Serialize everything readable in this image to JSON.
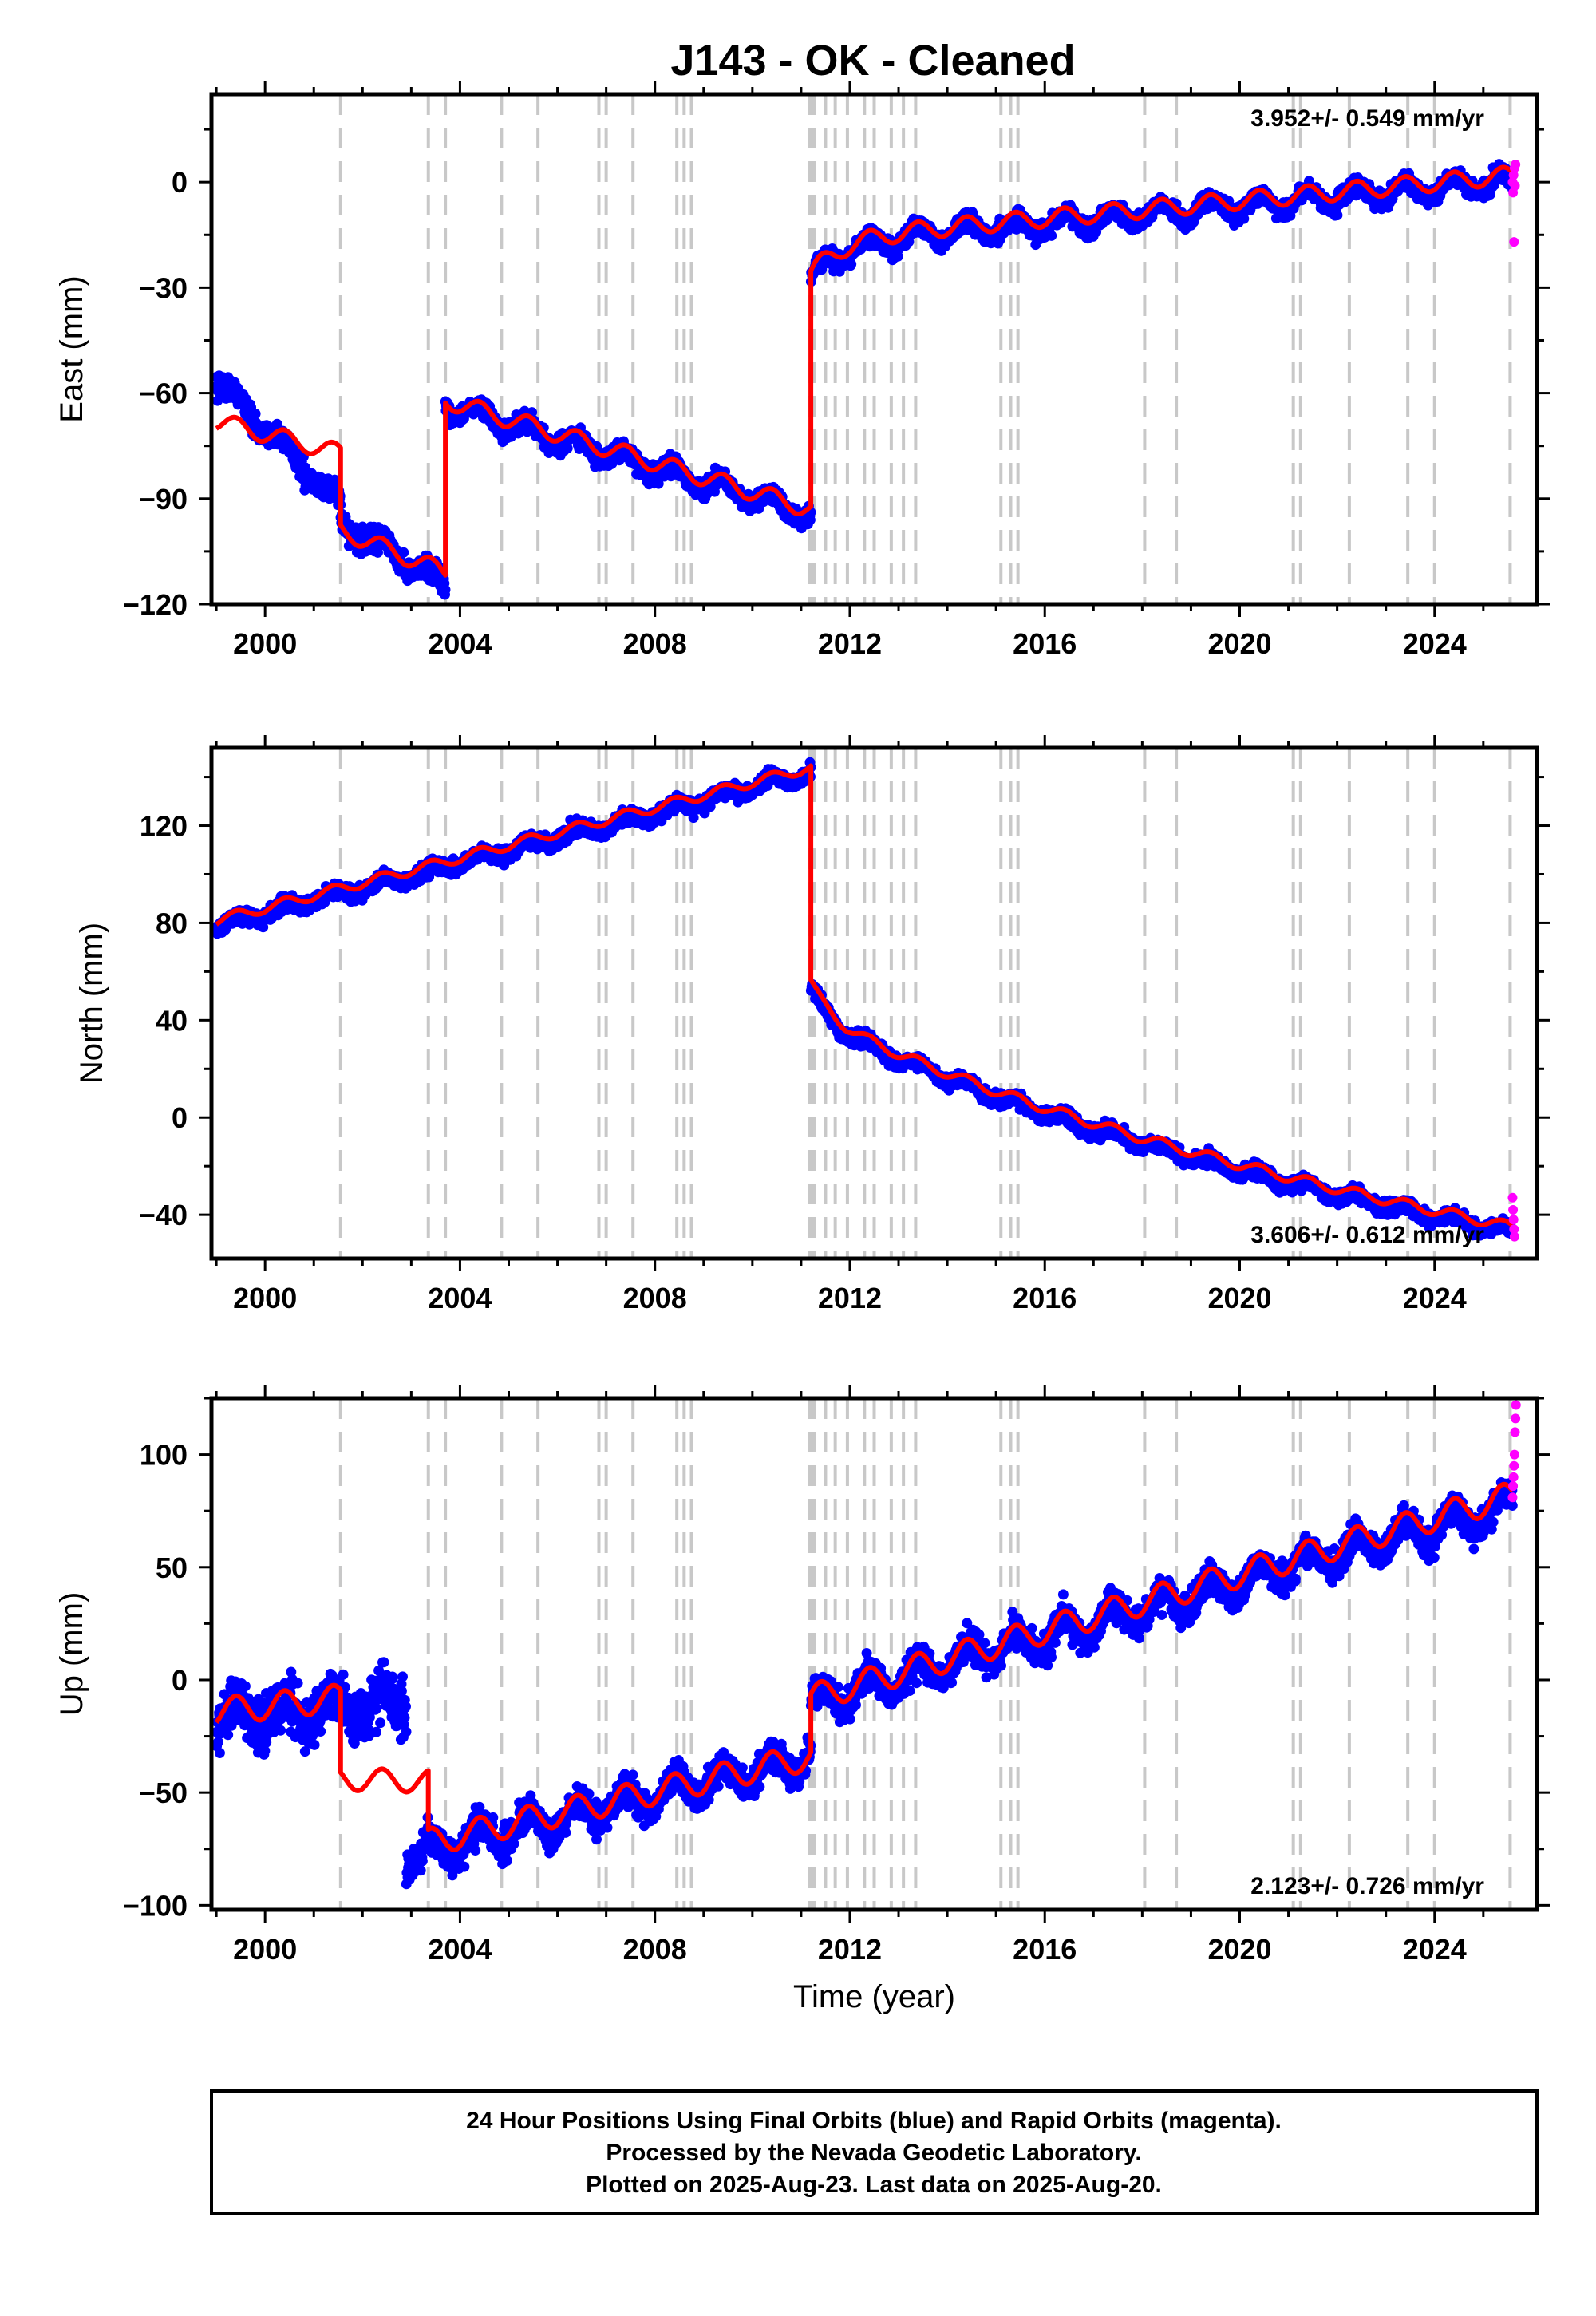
{
  "title": "J143  - OK - Cleaned",
  "footer": {
    "lines": [
      "24 Hour Positions Using Final Orbits (blue) and Rapid Orbits (magenta).",
      "Processed by the Nevada Geodetic Laboratory.",
      "Plotted on 2025-Aug-23. Last data on 2025-Aug-20."
    ]
  },
  "colors": {
    "final_orbits": "#0000ff",
    "rapid_orbits": "#ff00ff",
    "model": "#ff0000",
    "steps": "#c8c8c8"
  },
  "chart_data": [
    {
      "type": "scatter",
      "panel": "east",
      "title": "",
      "xlabel": "",
      "ylabel": "East (mm)",
      "xlim": [
        1998.9,
        2026.1
      ],
      "ylim": [
        -120,
        25
      ],
      "xticks": [
        2000,
        2004,
        2008,
        2012,
        2016,
        2020,
        2024
      ],
      "yticks": [
        -120,
        -90,
        -60,
        -30,
        0
      ],
      "grid": false,
      "rate_text": "3.952+/- 0.549 mm/yr",
      "rate_position": "top-right",
      "steps": [
        2001.55,
        2003.35,
        2003.7,
        2004.85,
        2005.6,
        2006.85,
        2007.0,
        2007.55,
        2008.45,
        2008.6,
        2008.75,
        2011.17,
        2011.22,
        2011.27,
        2011.5,
        2011.7,
        2011.95,
        2012.3,
        2012.5,
        2012.85,
        2013.1,
        2013.35,
        2015.1,
        2015.3,
        2015.45,
        2018.05,
        2018.7,
        2021.1,
        2021.25,
        2022.25,
        2023.45,
        2024.0,
        2025.55
      ],
      "series": [
        {
          "name": "Final Orbits",
          "segments": [
            {
              "x": [
                1999.0,
                2001.55
              ],
              "y": [
                -55,
                -90
              ],
              "seasonal": 2.5,
              "noise": 2.5
            },
            {
              "x": [
                2001.55,
                2003.7
              ],
              "y": [
                -95,
                -113
              ],
              "seasonal": 2.5,
              "noise": 2.5
            },
            {
              "x": [
                2003.7,
                2011.2
              ],
              "y": [
                -62,
                -93
              ],
              "seasonal": 2.5,
              "noise": 1.8
            },
            {
              "x": [
                2011.2,
                2025.6
              ],
              "y": [
                -16,
                2
              ],
              "seasonal": 2.5,
              "noise": 1.8,
              "decay": [
                -10,
                10,
                0.7
              ],
              "curve": [
                10,
                0.04
              ]
            }
          ]
        },
        {
          "name": "Rapid Orbits",
          "x": [
            2025.6,
            2025.61,
            2025.62,
            2025.63,
            2025.64,
            2025.65,
            2025.66
          ],
          "y": [
            0,
            -3,
            2,
            -17,
            4,
            -1,
            5
          ]
        },
        {
          "name": "Model",
          "segments": [
            {
              "x": [
                1999.0,
                2001.55
              ],
              "y": [
                -68,
                -77
              ],
              "seasonal": 2.5
            },
            {
              "x": [
                2001.55,
                2003.7
              ],
              "y": [
                -99,
                -111
              ],
              "seasonal": 2.5
            },
            {
              "x": [
                2003.7,
                2011.2
              ],
              "y": [
                -62,
                -93
              ],
              "seasonal": 2.5
            },
            {
              "x": [
                2011.2,
                2025.6
              ],
              "y": [
                -16,
                2
              ],
              "seasonal": 2.5,
              "decay": [
                -10,
                10,
                0.7
              ],
              "curve": [
                10,
                0.04
              ]
            }
          ]
        }
      ]
    },
    {
      "type": "scatter",
      "panel": "north",
      "title": "",
      "xlabel": "",
      "ylabel": "North (mm)",
      "xlim": [
        1998.9,
        2026.1
      ],
      "ylim": [
        -58,
        152
      ],
      "xticks": [
        2000,
        2004,
        2008,
        2012,
        2016,
        2020,
        2024
      ],
      "yticks": [
        -40,
        0,
        40,
        80,
        120
      ],
      "grid": false,
      "rate_text": "3.606+/- 0.612 mm/yr",
      "rate_position": "bottom-right",
      "steps": [
        2001.55,
        2003.35,
        2003.7,
        2004.85,
        2005.6,
        2006.85,
        2007.0,
        2007.55,
        2008.45,
        2008.6,
        2008.75,
        2011.17,
        2011.22,
        2011.27,
        2011.5,
        2011.7,
        2011.95,
        2012.3,
        2012.5,
        2012.85,
        2013.1,
        2013.35,
        2015.1,
        2015.3,
        2015.45,
        2018.05,
        2018.7,
        2021.1,
        2021.25,
        2022.25,
        2023.45,
        2024.0,
        2025.55
      ],
      "series": [
        {
          "name": "Final Orbits",
          "segments": [
            {
              "x": [
                1999.0,
                2011.2
              ],
              "y": [
                81,
                144
              ],
              "seasonal": 2.0,
              "noise": 2.2
            },
            {
              "x": [
                2011.2,
                2025.6
              ],
              "y": [
                42,
                -45
              ],
              "seasonal": 2.0,
              "noise": 2.0,
              "decay": [
                14,
                12,
                0.4
              ],
              "curve": [
                55,
                0.12
              ]
            }
          ]
        },
        {
          "name": "Rapid Orbits",
          "x": [
            2025.6,
            2025.61,
            2025.62,
            2025.63,
            2025.64
          ],
          "y": [
            -33,
            -38,
            -42,
            -46,
            -49
          ]
        },
        {
          "name": "Model",
          "segments": [
            {
              "x": [
                1999.0,
                2011.2
              ],
              "y": [
                81,
                144
              ],
              "seasonal": 2.0
            },
            {
              "x": [
                2011.2,
                2025.6
              ],
              "y": [
                42,
                -45
              ],
              "seasonal": 2.0,
              "decay": [
                14,
                12,
                0.4
              ],
              "curve": [
                55,
                0.12
              ]
            }
          ]
        }
      ]
    },
    {
      "type": "scatter",
      "panel": "up",
      "title": "",
      "xlabel": "Time (year)",
      "ylabel": "Up (mm)",
      "xlim": [
        1998.9,
        2026.1
      ],
      "ylim": [
        -102,
        125
      ],
      "xticks": [
        2000,
        2004,
        2008,
        2012,
        2016,
        2020,
        2024
      ],
      "yticks": [
        -100,
        -50,
        0,
        50,
        100
      ],
      "grid": false,
      "rate_text": "2.123+/- 0.726 mm/yr",
      "rate_position": "bottom-right",
      "steps": [
        2001.55,
        2003.35,
        2003.7,
        2004.85,
        2005.6,
        2006.85,
        2007.0,
        2007.55,
        2008.45,
        2008.6,
        2008.75,
        2011.17,
        2011.22,
        2011.27,
        2011.5,
        2011.7,
        2011.95,
        2012.3,
        2012.5,
        2012.85,
        2013.1,
        2013.35,
        2015.1,
        2015.3,
        2015.45,
        2018.05,
        2018.7,
        2021.1,
        2021.25,
        2022.25,
        2023.45,
        2024.0,
        2025.55
      ],
      "series": [
        {
          "name": "Final Orbits",
          "segments": [
            {
              "x": [
                1999.0,
                2002.9
              ],
              "y": [
                -14,
                -8
              ],
              "seasonal": 6,
              "noise": 9
            },
            {
              "x": [
                2002.9,
                2011.2
              ],
              "y": [
                -76,
                -32
              ],
              "seasonal": 6,
              "noise": 5
            },
            {
              "x": [
                2011.2,
                2025.6
              ],
              "y": [
                -8,
                80
              ],
              "seasonal": 6,
              "noise": 5
            }
          ]
        },
        {
          "name": "Rapid Orbits",
          "x": [
            2025.6,
            2025.61,
            2025.62,
            2025.63,
            2025.64,
            2025.65,
            2025.66,
            2025.67
          ],
          "y": [
            81,
            86,
            90,
            95,
            100,
            110,
            116,
            122
          ]
        },
        {
          "name": "Model",
          "segments": [
            {
              "x": [
                1999.0,
                2001.55
              ],
              "y": [
                -14,
                -8
              ],
              "seasonal": 6
            },
            {
              "x": [
                2001.55,
                2003.35
              ],
              "y": [
                -44,
                -45
              ],
              "seasonal": 5
            },
            {
              "x": [
                2003.35,
                2011.2
              ],
              "y": [
                -72,
                -34
              ],
              "seasonal": 6
            },
            {
              "x": [
                2011.2,
                2025.6
              ],
              "y": [
                -8,
                82
              ],
              "seasonal": 6
            }
          ]
        }
      ]
    }
  ]
}
